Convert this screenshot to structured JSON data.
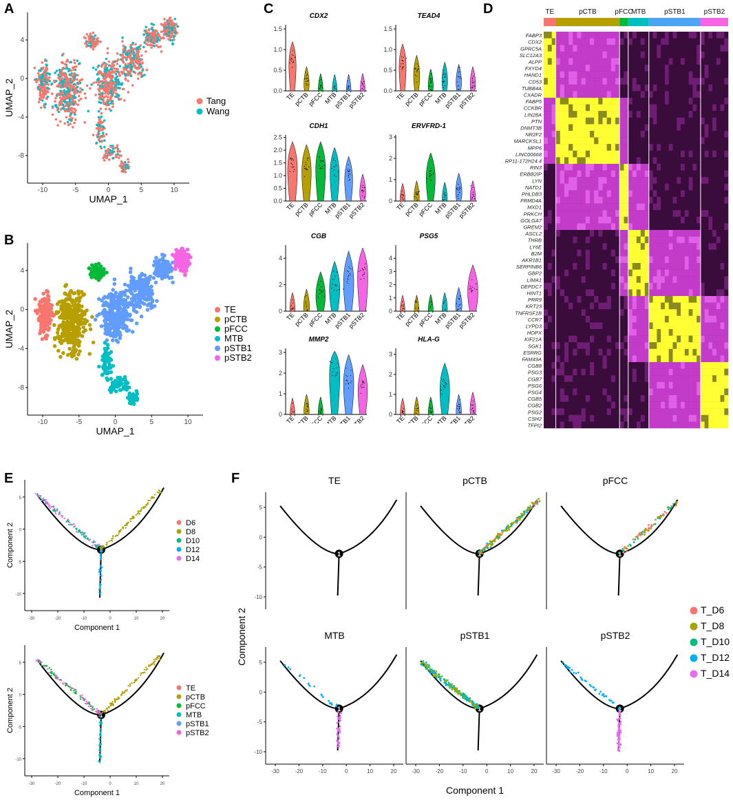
{
  "panels": {
    "A": {
      "label": "A",
      "xlabel": "UMAP_1",
      "ylabel": "UMAP_2",
      "xticks": [
        "-10",
        "-5",
        "0",
        "5",
        "10"
      ],
      "yticks": [
        "4",
        "0",
        "-4",
        "-8"
      ],
      "legend": [
        {
          "name": "Tang",
          "color": "#F8766D"
        },
        {
          "name": "Wang",
          "color": "#00BFC4"
        }
      ]
    },
    "B": {
      "label": "B",
      "xlabel": "UMAP_1",
      "ylabel": "UMAP_2",
      "xticks": [
        "-10",
        "-5",
        "0",
        "5",
        "10"
      ],
      "yticks": [
        "4",
        "0",
        "-4",
        "-8"
      ],
      "legend": [
        {
          "name": "TE",
          "color": "#F8766D"
        },
        {
          "name": "pCTB",
          "color": "#B79F00"
        },
        {
          "name": "pFCC",
          "color": "#00BA38"
        },
        {
          "name": "MTB",
          "color": "#00BFC4"
        },
        {
          "name": "pSTB1",
          "color": "#619CFF"
        },
        {
          "name": "pSTB2",
          "color": "#F564E3"
        }
      ]
    },
    "C": {
      "label": "C",
      "clusters": [
        "TE",
        "pCTB",
        "pFCC",
        "MTB",
        "pSTB1",
        "pSTB2"
      ],
      "genes": [
        {
          "name": "CDX2",
          "yticks": [
            "1.5",
            "1.0",
            "0.5",
            "0.0"
          ],
          "ymax": 1.6,
          "medians": [
            0.75,
            0.2,
            0.05,
            0.03,
            0.03,
            0.05
          ]
        },
        {
          "name": "TEAD4",
          "yticks": [
            "1.5",
            "1.0",
            "0.5",
            "0.0"
          ],
          "ymax": 1.6,
          "medians": [
            0.7,
            0.45,
            0.15,
            0.3,
            0.25,
            0.2
          ]
        },
        {
          "name": "CDH1",
          "yticks": [
            "2.5",
            "2.0",
            "1.5",
            "1.0",
            "0.5",
            "0.0"
          ],
          "ymax": 2.6,
          "medians": [
            1.5,
            1.4,
            1.5,
            1.3,
            1.0,
            0.4
          ]
        },
        {
          "name": "ERVFRD-1",
          "yticks": [
            "3",
            "2",
            "1",
            "0"
          ],
          "ymax": 3.1,
          "medians": [
            0.1,
            0.2,
            1.3,
            0.15,
            0.5,
            0.2
          ]
        },
        {
          "name": "CGB",
          "yticks": [
            "4",
            "2",
            "0"
          ],
          "ymax": 5.0,
          "medians": [
            0.2,
            0.4,
            1.4,
            2.0,
            2.6,
            3.1
          ]
        },
        {
          "name": "PSG5",
          "yticks": [
            "4",
            "3",
            "2",
            "1",
            "0"
          ],
          "ymax": 5.0,
          "medians": [
            0.05,
            0.05,
            0.1,
            0.2,
            0.5,
            1.8
          ]
        },
        {
          "name": "MMP2",
          "yticks": [
            "3",
            "2",
            "1",
            "0"
          ],
          "ymax": 3.2,
          "medians": [
            0.05,
            0.2,
            0.1,
            2.3,
            1.8,
            1.4
          ]
        },
        {
          "name": "HLA-G",
          "yticks": [
            "3",
            "2",
            "1",
            "0"
          ],
          "ymax": 3.3,
          "medians": [
            0.05,
            0.1,
            0.1,
            1.5,
            0.2,
            0.3
          ]
        }
      ]
    },
    "D": {
      "label": "D",
      "groups": [
        {
          "name": "TE",
          "color": "#F8766D",
          "width": 7
        },
        {
          "name": "pCTB",
          "color": "#B79F00",
          "width": 37
        },
        {
          "name": "pFCC",
          "color": "#00BA38",
          "width": 5
        },
        {
          "name": "MTB",
          "color": "#00BFC4",
          "width": 12
        },
        {
          "name": "pSTB1",
          "color": "#4DA6F5",
          "width": 30
        },
        {
          "name": "pSTB2",
          "color": "#F564E3",
          "width": 16
        }
      ],
      "genes": [
        "FABP3",
        "CDX2",
        "GPRC5A",
        "SLC12A3",
        "ALPP",
        "FXYD4",
        "HAND1",
        "CD53",
        "TUBB4A",
        "CXADR",
        "FABP5",
        "CCKBR",
        "LIN28A",
        "PTN",
        "DNMT3B",
        "NR2F2",
        "MARCKSL1",
        "MPP6",
        "LINC00668",
        "RP11-172H24.4",
        "RIN3",
        "ERBB2IP",
        "LYN",
        "NATD1",
        "PHLDB3",
        "FRMD4A",
        "MXD1",
        "PRKCH",
        "GOLGA7",
        "GREM2",
        "ASCL2",
        "THRB",
        "LY6E",
        "B2M",
        "AKR1B1",
        "SERPINB6",
        "GBP2",
        "LIMA1",
        "DEPDC7",
        "HINT1",
        "PRR9",
        "KRT23",
        "TNFRSF1B",
        "CCR7",
        "LYPD3",
        "HOPX",
        "KIF21A",
        "SGK1",
        "ESRRG",
        "FAM49A",
        "CGB8",
        "PSG3",
        "CGB7",
        "PSG6",
        "PSG4",
        "CGB5",
        "CGB2",
        "PSG2",
        "CSH2",
        "TFPI2"
      ]
    },
    "E": {
      "label": "E",
      "xlabel": "Component 1",
      "ylabel": "Component 2",
      "xticks": [
        "-30",
        "-20",
        "-10",
        "0",
        "10",
        "20"
      ],
      "yticks": [
        "5",
        "0",
        "-5",
        "-10"
      ],
      "legend_top": [
        {
          "name": "D6",
          "color": "#F8766D"
        },
        {
          "name": "D8",
          "color": "#A3A500"
        },
        {
          "name": "D10",
          "color": "#00BF7D"
        },
        {
          "name": "D12",
          "color": "#00B0F6"
        },
        {
          "name": "D14",
          "color": "#E76BF3"
        }
      ],
      "legend_bottom": [
        {
          "name": "TE",
          "color": "#F8766D"
        },
        {
          "name": "pCTB",
          "color": "#B79F00"
        },
        {
          "name": "pFCC",
          "color": "#00BA38"
        },
        {
          "name": "MTB",
          "color": "#00BFC4"
        },
        {
          "name": "pSTB1",
          "color": "#619CFF"
        },
        {
          "name": "pSTB2",
          "color": "#F564E3"
        }
      ]
    },
    "F": {
      "label": "F",
      "xlabel": "Component 1",
      "ylabel": "Component 2",
      "xticks": [
        "-30",
        "-20",
        "-10",
        "0",
        "10",
        "20"
      ],
      "yticks": [
        "5",
        "0",
        "-5",
        "-10"
      ],
      "node_label": "1",
      "facets": [
        "TE",
        "pCTB",
        "pFCC",
        "MTB",
        "pSTB1",
        "pSTB2"
      ],
      "legend": [
        {
          "name": "T_D6",
          "color": "#F8766D"
        },
        {
          "name": "T_D8",
          "color": "#A3A500"
        },
        {
          "name": "T_D10",
          "color": "#00BF7D"
        },
        {
          "name": "T_D12",
          "color": "#00B0F6"
        },
        {
          "name": "T_D14",
          "color": "#E76BF3"
        }
      ]
    }
  }
}
